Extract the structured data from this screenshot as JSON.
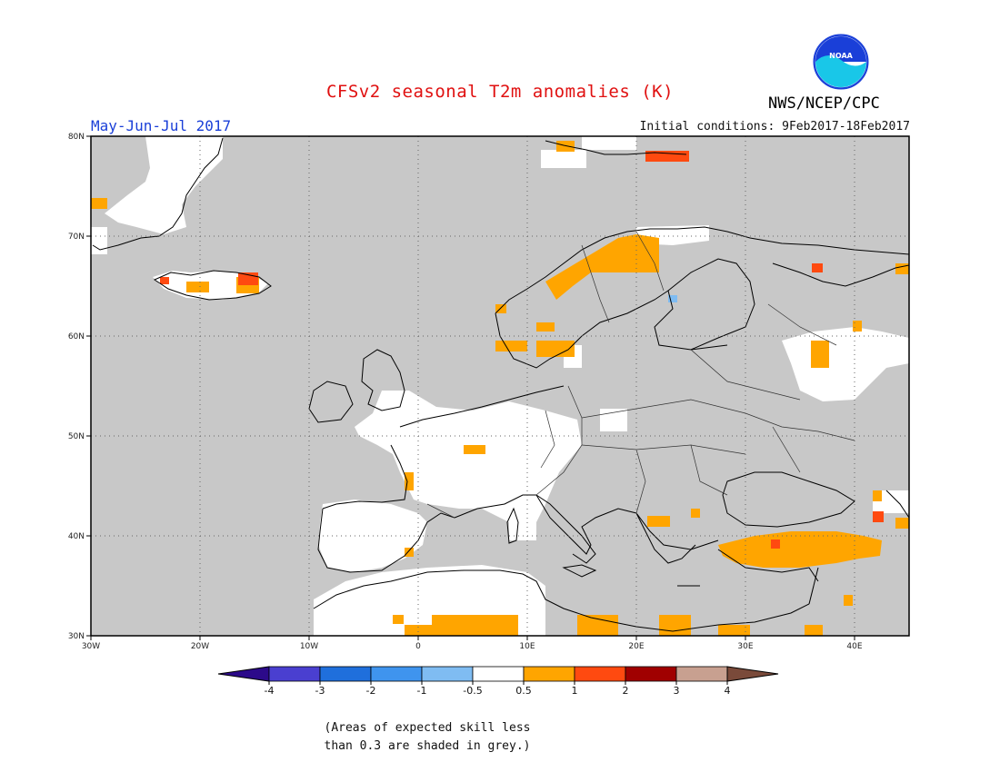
{
  "header": {
    "title": "CFSv2 seasonal T2m anomalies (K)",
    "agency": "NWS/NCEP/CPC",
    "season": "May-Jun-Jul 2017",
    "initial_conditions": "Initial conditions: 9Feb2017-18Feb2017",
    "logo_text": "NOAA"
  },
  "map": {
    "lon_range": [
      -30,
      45
    ],
    "lat_range": [
      30,
      80
    ],
    "lat_ticks": [
      "30N",
      "40N",
      "50N",
      "60N",
      "70N",
      "80N"
    ],
    "lon_ticks": [
      "30W",
      "20W",
      "10W",
      "0",
      "10E",
      "20E",
      "30E",
      "40E"
    ],
    "grid": "dotted"
  },
  "colorbar": {
    "labels": [
      "-4",
      "-3",
      "-2",
      "-1",
      "-0.5",
      "0.5",
      "1",
      "2",
      "3",
      "4"
    ],
    "colors": {
      "lt_-4": "#2c0a8a",
      "-4_-3": "#4a3fd0",
      "-3_-2": "#1f6fdc",
      "-2_-1": "#3f94ee",
      "-1_-0.5": "#7fbcf2",
      "-0.5_0.5": "#ffffff",
      "0.5_1": "#ffa500",
      "1_2": "#ff4a10",
      "2_3": "#a00000",
      "3_4": "#c8a090",
      "gt_4": "#7a4a3a"
    }
  },
  "colors": {
    "skill_mask": "#c8c8c8",
    "ocean_land_grey": "#c8c8c8"
  },
  "footnote": {
    "line1": "(Areas of expected skill less",
    "line2": "than 0.3 are shaded in grey.)"
  }
}
